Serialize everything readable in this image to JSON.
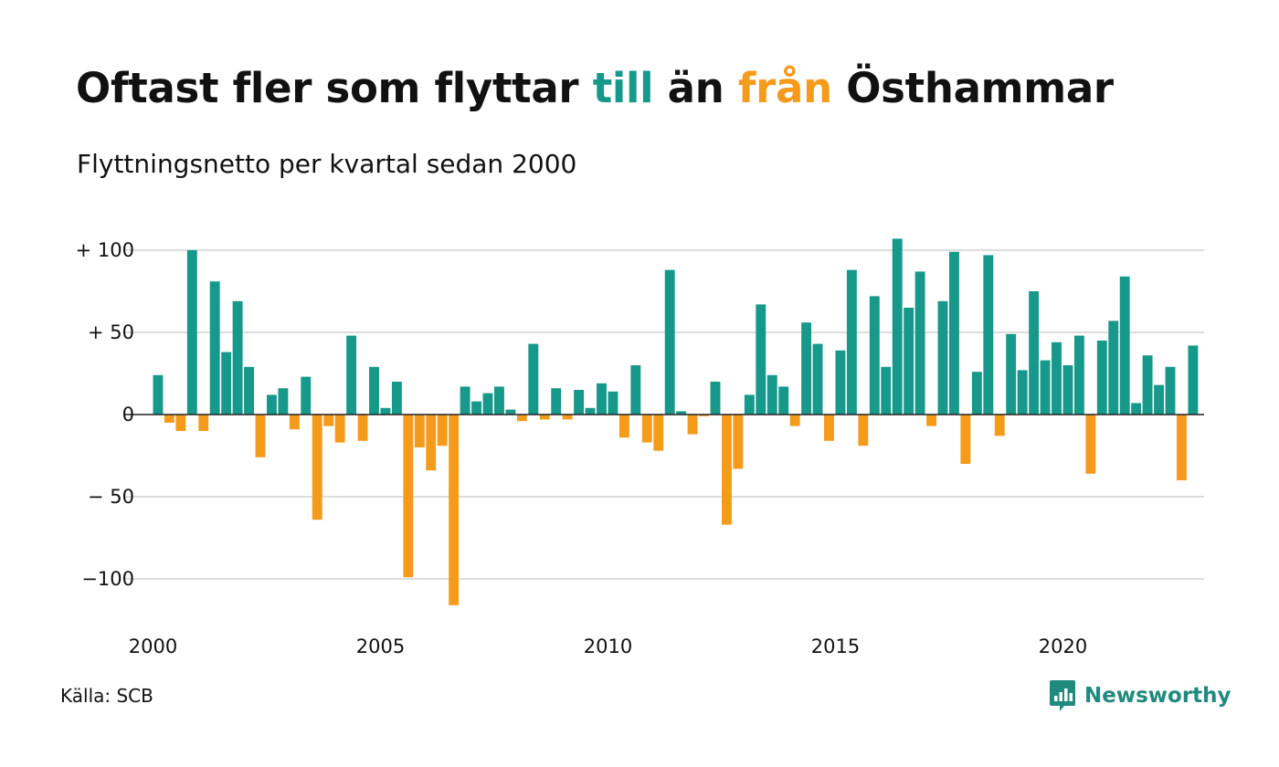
{
  "title": {
    "part1": "Oftast fler som flyttar ",
    "part2": "till",
    "part3": " än ",
    "part4": "från",
    "part5": " Östhammar"
  },
  "subtitle": "Flyttningsnetto per kvartal sedan 2000",
  "source": "Källa: SCB",
  "brand": "Newsworthy",
  "colors": {
    "positive": "#16988a",
    "negative": "#f59b1c",
    "grid": "#dddddd",
    "zero": "#222222",
    "text": "#111111"
  },
  "chart_data": {
    "type": "bar",
    "title": "Oftast fler som flyttar till än från Östhammar",
    "subtitle": "Flyttningsnetto per kvartal sedan 2000",
    "xlabel": "",
    "ylabel": "",
    "ylim": [
      -120,
      110
    ],
    "yticks": [
      {
        "value": 100,
        "label": "+ 100"
      },
      {
        "value": 50,
        "label": "+  50"
      },
      {
        "value": 0,
        "label": "0"
      },
      {
        "value": -50,
        "label": "− 50"
      },
      {
        "value": -100,
        "label": "−100"
      }
    ],
    "xticks": [
      {
        "value": 2000,
        "label": "2000"
      },
      {
        "value": 2005,
        "label": "2005"
      },
      {
        "value": 2010,
        "label": "2010"
      },
      {
        "value": 2015,
        "label": "2015"
      },
      {
        "value": 2020,
        "label": "2020"
      }
    ],
    "grid": true,
    "start_year": 2000,
    "periods_per_year": 4,
    "values": [
      24,
      -5,
      -10,
      100,
      -10,
      81,
      38,
      69,
      29,
      -26,
      12,
      16,
      -9,
      23,
      -64,
      -7,
      -17,
      48,
      -16,
      29,
      4,
      20,
      -99,
      -20,
      -34,
      -19,
      -116,
      17,
      8,
      13,
      17,
      3,
      -4,
      43,
      -3,
      16,
      -3,
      15,
      4,
      19,
      14,
      -14,
      30,
      -17,
      -22,
      88,
      2,
      -12,
      -1,
      20,
      -67,
      -33,
      12,
      67,
      24,
      17,
      -7,
      56,
      43,
      -16,
      39,
      88,
      -19,
      72,
      29,
      107,
      65,
      87,
      -7,
      69,
      99,
      -30,
      26,
      97,
      -13,
      49,
      27,
      75,
      33,
      44,
      30,
      48,
      -36,
      45,
      57,
      84,
      7,
      36,
      18,
      29,
      -40,
      42
    ]
  }
}
